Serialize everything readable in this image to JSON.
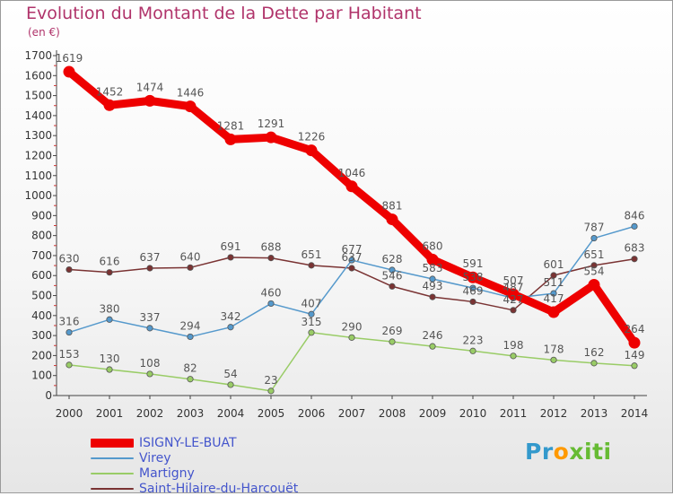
{
  "title": "Evolution du Montant de la Dette par Habitant",
  "subtitle": "(en €)",
  "logo": {
    "text": "Proxiti",
    "letter_colors": [
      "#3399cc",
      "#3399cc",
      "#ff9900",
      "#66bb33",
      "#66bb33",
      "#66bb33",
      "#66bb33"
    ]
  },
  "chart_data": {
    "type": "line",
    "x": [
      "2000",
      "2001",
      "2002",
      "2003",
      "2004",
      "2005",
      "2006",
      "2007",
      "2008",
      "2009",
      "2010",
      "2011",
      "2012",
      "2013",
      "2014"
    ],
    "ylim": [
      0,
      1700
    ],
    "yticks": [
      "0",
      "100",
      "200",
      "300",
      "400",
      "500",
      "600",
      "700",
      "800",
      "900",
      "1000",
      "1100",
      "1200",
      "1300",
      "1400",
      "1500",
      "1600",
      "1700"
    ],
    "grid": false,
    "legend_position": "bottom-left",
    "series": [
      {
        "name": "ISIGNY-LE-BUAT",
        "color": "#ee0000",
        "label_color": "#555555",
        "emphasis": "thick",
        "values": [
          1619,
          1452,
          1474,
          1446,
          1281,
          1291,
          1226,
          1046,
          881,
          680,
          591,
          507,
          417,
          554,
          264
        ],
        "labels": [
          "1619",
          "1452",
          "1474",
          "1446",
          "1281",
          "1291",
          "1226",
          "1046",
          "881",
          "680",
          "591",
          "507",
          "417",
          "554",
          "264"
        ]
      },
      {
        "name": "Virey",
        "color": "#5599cc",
        "label_color": "#555555",
        "emphasis": "normal",
        "values": [
          316,
          380,
          337,
          294,
          342,
          460,
          407,
          677,
          628,
          583,
          538,
          487,
          511,
          787,
          846
        ],
        "labels": [
          "316",
          "380",
          "337",
          "294",
          "342",
          "460",
          "407",
          "677",
          "628",
          "583",
          "538",
          "487",
          "511",
          "787",
          "846"
        ]
      },
      {
        "name": "Martigny",
        "color": "#99cc66",
        "label_color": "#555555",
        "emphasis": "normal",
        "values": [
          153,
          130,
          108,
          82,
          54,
          23,
          315,
          290,
          269,
          246,
          223,
          198,
          178,
          162,
          149
        ],
        "labels": [
          "153",
          "130",
          "108",
          "82",
          "54",
          "23",
          "315",
          "290",
          "269",
          "246",
          "223",
          "198",
          "178",
          "162",
          "149"
        ]
      },
      {
        "name": "Saint-Hilaire-du-Harcouët",
        "color": "#7a3333",
        "label_color": "#555555",
        "emphasis": "normal",
        "values": [
          630,
          616,
          637,
          640,
          691,
          688,
          651,
          637,
          546,
          493,
          469,
          427,
          601,
          651,
          683
        ],
        "labels": [
          "630",
          "616",
          "637",
          "640",
          "691",
          "688",
          "651",
          "637",
          "546",
          "493",
          "469",
          "427",
          "601",
          "651",
          "683"
        ]
      }
    ]
  }
}
